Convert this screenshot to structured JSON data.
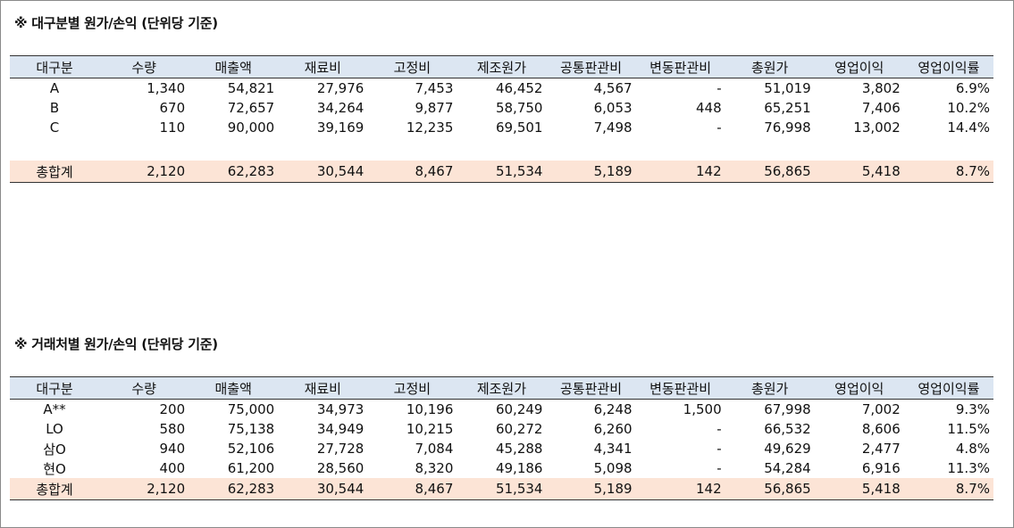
{
  "section1": {
    "title": "※ 대구분별 원가/손익 (단위당 기준)",
    "headers": [
      "대구분",
      "수량",
      "매출액",
      "재료비",
      "고정비",
      "제조원가",
      "공통판관비",
      "변동판관비",
      "총원가",
      "영업이익",
      "영업이익률"
    ],
    "rows": [
      [
        "A",
        "1,340",
        "54,821",
        "27,976",
        "7,453",
        "46,452",
        "4,567",
        "-",
        "51,019",
        "3,802",
        "6.9%"
      ],
      [
        "B",
        "670",
        "72,657",
        "34,264",
        "9,877",
        "58,750",
        "6,053",
        "448",
        "65,251",
        "7,406",
        "10.2%"
      ],
      [
        "C",
        "110",
        "90,000",
        "39,169",
        "12,235",
        "69,501",
        "7,498",
        "-",
        "76,998",
        "13,002",
        "14.4%"
      ]
    ],
    "total": [
      "총합계",
      "2,120",
      "62,283",
      "30,544",
      "8,467",
      "51,534",
      "5,189",
      "142",
      "56,865",
      "5,418",
      "8.7%"
    ]
  },
  "section2": {
    "title": "※ 거래처별 원가/손익 (단위당 기준)",
    "headers": [
      "대구분",
      "수량",
      "매출액",
      "재료비",
      "고정비",
      "제조원가",
      "공통판관비",
      "변동판관비",
      "총원가",
      "영업이익",
      "영업이익률"
    ],
    "rows": [
      [
        "A**",
        "200",
        "75,000",
        "34,973",
        "10,196",
        "60,249",
        "6,248",
        "1,500",
        "67,998",
        "7,002",
        "9.3%"
      ],
      [
        "LO",
        "580",
        "75,138",
        "34,949",
        "10,215",
        "60,272",
        "6,260",
        "-",
        "66,532",
        "8,606",
        "11.5%"
      ],
      [
        "삼O",
        "940",
        "52,106",
        "27,728",
        "7,084",
        "45,288",
        "4,341",
        "-",
        "49,629",
        "2,477",
        "4.8%"
      ],
      [
        "현O",
        "400",
        "61,200",
        "28,560",
        "8,320",
        "49,186",
        "5,098",
        "-",
        "54,284",
        "6,916",
        "11.3%"
      ]
    ],
    "total": [
      "총합계",
      "2,120",
      "62,283",
      "30,544",
      "8,467",
      "51,534",
      "5,189",
      "142",
      "56,865",
      "5,418",
      "8.7%"
    ]
  }
}
